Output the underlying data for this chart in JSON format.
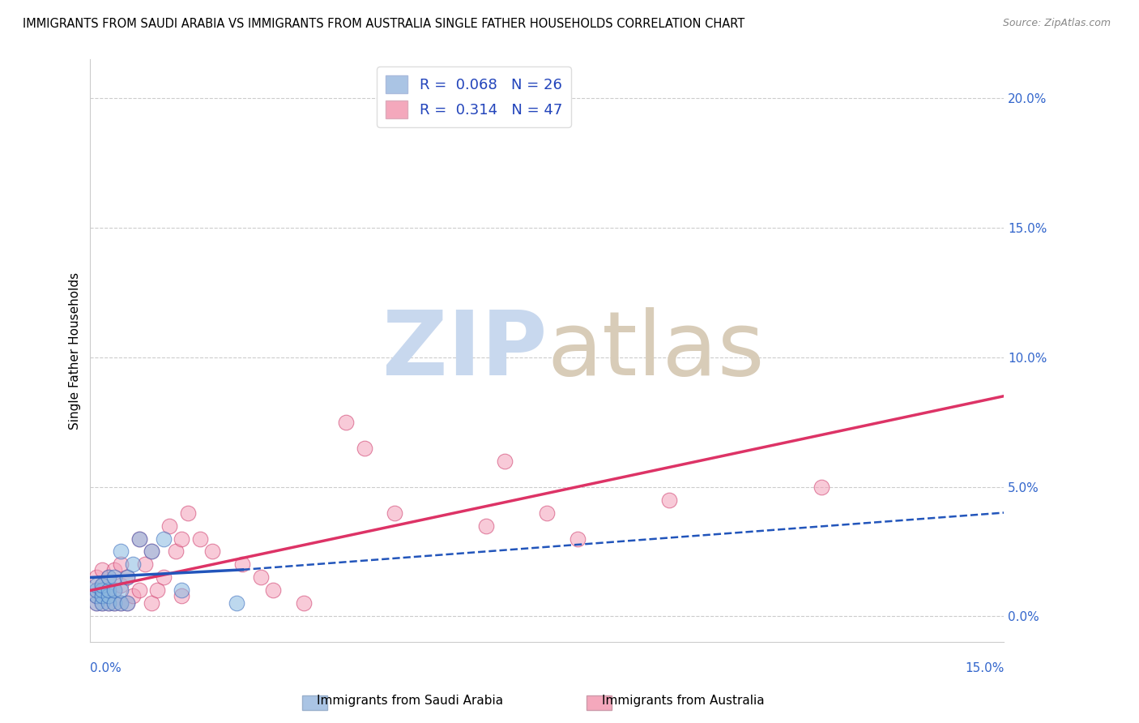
{
  "title": "IMMIGRANTS FROM SAUDI ARABIA VS IMMIGRANTS FROM AUSTRALIA SINGLE FATHER HOUSEHOLDS CORRELATION CHART",
  "source": "Source: ZipAtlas.com",
  "ylabel": "Single Father Households",
  "ytick_vals": [
    0.0,
    0.05,
    0.1,
    0.15,
    0.2
  ],
  "ytick_labels": [
    "0.0%",
    "5.0%",
    "10.0%",
    "15.0%",
    "20.0%"
  ],
  "xmin": 0.0,
  "xmax": 0.15,
  "ymin": -0.01,
  "ymax": 0.215,
  "legend1_label": "R =  0.068   N = 26",
  "legend2_label": "R =  0.314   N = 47",
  "legend1_color": "#aac4e4",
  "legend2_color": "#f4a8bc",
  "legend_text_color": "#2244bb",
  "saudi_color": "#88b8e0",
  "saudi_edge_color": "#3366bb",
  "australia_color": "#f4a0b8",
  "australia_edge_color": "#cc3366",
  "saudi_line_color": "#2255bb",
  "australia_line_color": "#dd3366",
  "grid_color": "#cccccc",
  "background_color": "#ffffff",
  "watermark_zip_color": "#c8d8ee",
  "watermark_atlas_color": "#d8ccb8",
  "saudi_dots_x": [
    0.001,
    0.001,
    0.001,
    0.001,
    0.002,
    0.002,
    0.002,
    0.002,
    0.003,
    0.003,
    0.003,
    0.003,
    0.004,
    0.004,
    0.004,
    0.005,
    0.005,
    0.005,
    0.006,
    0.006,
    0.007,
    0.008,
    0.01,
    0.012,
    0.015,
    0.024
  ],
  "saudi_dots_y": [
    0.005,
    0.008,
    0.01,
    0.012,
    0.005,
    0.008,
    0.01,
    0.012,
    0.005,
    0.008,
    0.01,
    0.015,
    0.005,
    0.01,
    0.015,
    0.005,
    0.01,
    0.025,
    0.005,
    0.015,
    0.02,
    0.03,
    0.025,
    0.03,
    0.01,
    0.005
  ],
  "australia_dots_x": [
    0.001,
    0.001,
    0.001,
    0.001,
    0.002,
    0.002,
    0.002,
    0.002,
    0.003,
    0.003,
    0.003,
    0.004,
    0.004,
    0.004,
    0.005,
    0.005,
    0.005,
    0.006,
    0.006,
    0.007,
    0.008,
    0.008,
    0.009,
    0.01,
    0.01,
    0.011,
    0.012,
    0.013,
    0.014,
    0.015,
    0.015,
    0.016,
    0.018,
    0.02,
    0.025,
    0.028,
    0.03,
    0.035,
    0.042,
    0.045,
    0.05,
    0.065,
    0.068,
    0.075,
    0.08,
    0.095,
    0.12
  ],
  "australia_dots_y": [
    0.005,
    0.008,
    0.01,
    0.015,
    0.005,
    0.008,
    0.012,
    0.018,
    0.005,
    0.01,
    0.015,
    0.005,
    0.01,
    0.018,
    0.005,
    0.012,
    0.02,
    0.005,
    0.015,
    0.008,
    0.01,
    0.03,
    0.02,
    0.005,
    0.025,
    0.01,
    0.015,
    0.035,
    0.025,
    0.008,
    0.03,
    0.04,
    0.03,
    0.025,
    0.02,
    0.015,
    0.01,
    0.005,
    0.075,
    0.065,
    0.04,
    0.035,
    0.06,
    0.04,
    0.03,
    0.045,
    0.05
  ],
  "sau_trend_start_x": 0.0,
  "sau_trend_end_solid_x": 0.025,
  "sau_trend_start_y": 0.015,
  "sau_trend_end_solid_y": 0.018,
  "sau_trend_end_dash_y": 0.04,
  "aus_trend_start_x": 0.0,
  "aus_trend_end_x": 0.15,
  "aus_trend_start_y": 0.01,
  "aus_trend_end_y": 0.085
}
